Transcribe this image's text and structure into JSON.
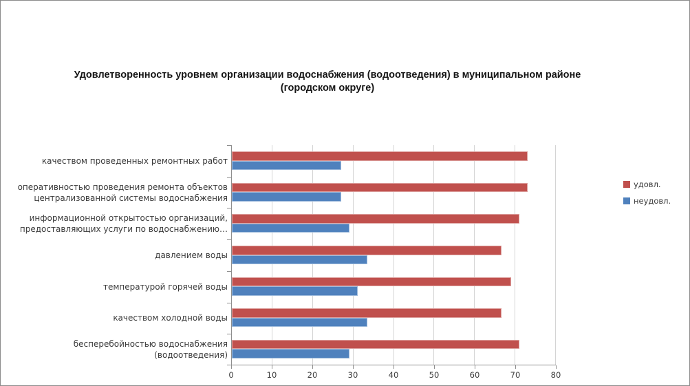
{
  "window": {
    "background": "#ffffff",
    "border_color": "#8a8a8a"
  },
  "chart_data": {
    "type": "bar",
    "orientation": "horizontal",
    "title": "Удовлетворенность уровнем организации водоснабжения (водоотведения) в муниципальном районе (городском округе)",
    "categories": [
      "качеством проведенных ремонтных работ",
      "оперативностью проведения ремонта объектов централизованной системы водоснабжения",
      "информационной открытостью организаций, предоставляющих услуги по водоснабжению…",
      "давлением воды",
      "температурой горячей воды",
      "качеством холодной воды",
      "бесперебойностью водоснабжения (водоотведения)"
    ],
    "series": [
      {
        "name": "удовл.",
        "color": "#C0504D",
        "values": [
          73,
          73,
          71,
          66.5,
          69,
          66.5,
          71
        ]
      },
      {
        "name": "неудовл.",
        "color": "#4F81BD",
        "values": [
          27,
          27,
          29,
          33.5,
          31,
          33.5,
          29
        ]
      }
    ],
    "xlim": [
      0,
      80
    ],
    "xticks": [
      0,
      10,
      20,
      30,
      40,
      50,
      60,
      70,
      80
    ],
    "grid": true,
    "legend_position": "right",
    "colors": {
      "gridline": "#d4d4d4",
      "axis": "#8e8e8e",
      "label_text": "#3b3b3b",
      "title_text": "#151515"
    }
  }
}
